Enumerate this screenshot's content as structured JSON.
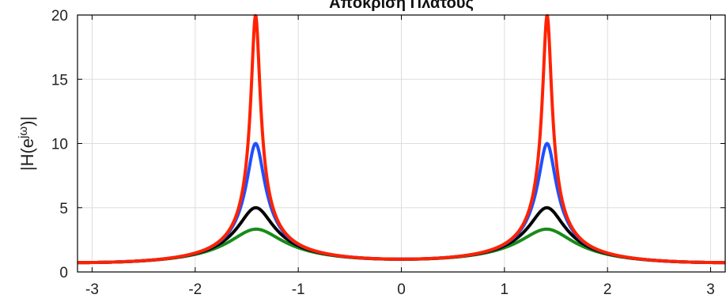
{
  "chart_data": {
    "type": "line",
    "title": "Απόκριση Πλάτους",
    "xlabel": "",
    "ylabel_base": "|H(e",
    "ylabel_sup": "jω",
    "ylabel_tail": ")|",
    "xlim": [
      -3.1416,
      3.1416
    ],
    "ylim": [
      0,
      20
    ],
    "x_ticks": [
      -3,
      -2,
      -1,
      0,
      1,
      2,
      3
    ],
    "y_ticks": [
      0,
      5,
      10,
      15,
      20
    ],
    "grid": true,
    "peak_frequency": 1.4142,
    "series": [
      {
        "color": "#ff2200",
        "peak_value": 20,
        "values_at_ticks": {
          "x": [
            -3.1416,
            -2,
            -1,
            0,
            1,
            1.4142,
            2,
            3.1416
          ],
          "y": [
            0.73,
            0.58,
            0.64,
            0.92,
            2.0,
            20.0,
            1.67,
            0.73
          ]
        }
      },
      {
        "color": "#1f4fff",
        "peak_value": 10,
        "values_at_ticks": {
          "x": [
            -3.1416,
            -2,
            -1,
            0,
            1,
            1.4142,
            2,
            3.1416
          ],
          "y": [
            0.73,
            0.58,
            0.64,
            0.92,
            1.95,
            10.0,
            1.65,
            0.73
          ]
        }
      },
      {
        "color": "#000000",
        "peak_value": 5,
        "values_at_ticks": {
          "x": [
            -3.1416,
            -2,
            -1,
            0,
            1,
            1.4142,
            2,
            3.1416
          ],
          "y": [
            0.73,
            0.58,
            0.64,
            0.91,
            1.9,
            5.0,
            1.6,
            0.73
          ]
        }
      },
      {
        "color": "#1a8a1a",
        "peak_value": 3.33,
        "values_at_ticks": {
          "x": [
            -3.1416,
            -2,
            -1,
            0,
            1,
            1.4142,
            2,
            3.1416
          ],
          "y": [
            0.73,
            0.58,
            0.64,
            0.9,
            1.8,
            3.33,
            1.5,
            0.72
          ]
        }
      }
    ]
  }
}
